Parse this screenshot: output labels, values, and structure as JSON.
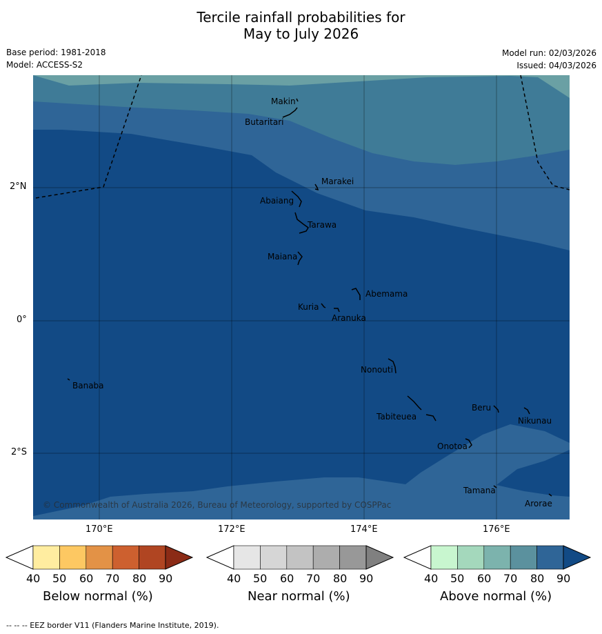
{
  "title": {
    "line1": "Tercile rainfall probabilities for",
    "line2": "May to July 2026"
  },
  "meta": {
    "base_period": "Base period: 1981-2018",
    "model": "Model: ACCESS-S2",
    "model_run": "Model run: 02/03/2026",
    "issued": "Issued: 04/03/2026"
  },
  "map": {
    "lat_labels": [
      "2°N",
      "0°",
      "2°S"
    ],
    "lon_labels": [
      "170°E",
      "172°E",
      "174°E",
      "176°E"
    ],
    "islands": {
      "makin": "Makin",
      "butaritari": "Butaritari",
      "marakei": "Marakei",
      "abaiang": "Abaiang",
      "tarawa": "Tarawa",
      "maiana": "Maiana",
      "abemama": "Abemama",
      "kuria": "Kuria",
      "aranuka": "Aranuka",
      "nonouti": "Nonouti",
      "banaba": "Banaba",
      "beru": "Beru",
      "nikunau": "Nikunau",
      "tabiteuea": "Tabiteuea",
      "onotoa": "Onotoa",
      "tamana": "Tamana",
      "arorae": "Arorae"
    },
    "copyright": "© Commonwealth of Australia 2026, Bureau of Meteorology, supported by COSPPac",
    "fill_colors": {
      "p90": "#124a85",
      "p80": "#2f6597",
      "p70": "#3f7b97",
      "p60": "#6aa0a4"
    }
  },
  "colorbars": [
    {
      "title": "Below normal (%)",
      "ticks": [
        "40",
        "50",
        "60",
        "70",
        "80",
        "90"
      ],
      "colors": [
        "#ffeda0",
        "#fdc862",
        "#e39246",
        "#cd602f",
        "#b04522",
        "#8b2b16"
      ]
    },
    {
      "title": "Near normal (%)",
      "ticks": [
        "40",
        "50",
        "60",
        "70",
        "80",
        "90"
      ],
      "colors": [
        "#e6e6e6",
        "#d6d6d6",
        "#c3c3c3",
        "#adadad",
        "#989898",
        "#808080"
      ]
    },
    {
      "title": "Above normal (%)",
      "ticks": [
        "40",
        "50",
        "60",
        "70",
        "80",
        "90"
      ],
      "colors": [
        "#c8f6cf",
        "#a4d8bc",
        "#7cb3ad",
        "#5b919e",
        "#2f6597",
        "#124a85"
      ]
    }
  ],
  "footnote": "--  --  -- EEZ border V11 (Flanders Marine Institute, 2019)."
}
